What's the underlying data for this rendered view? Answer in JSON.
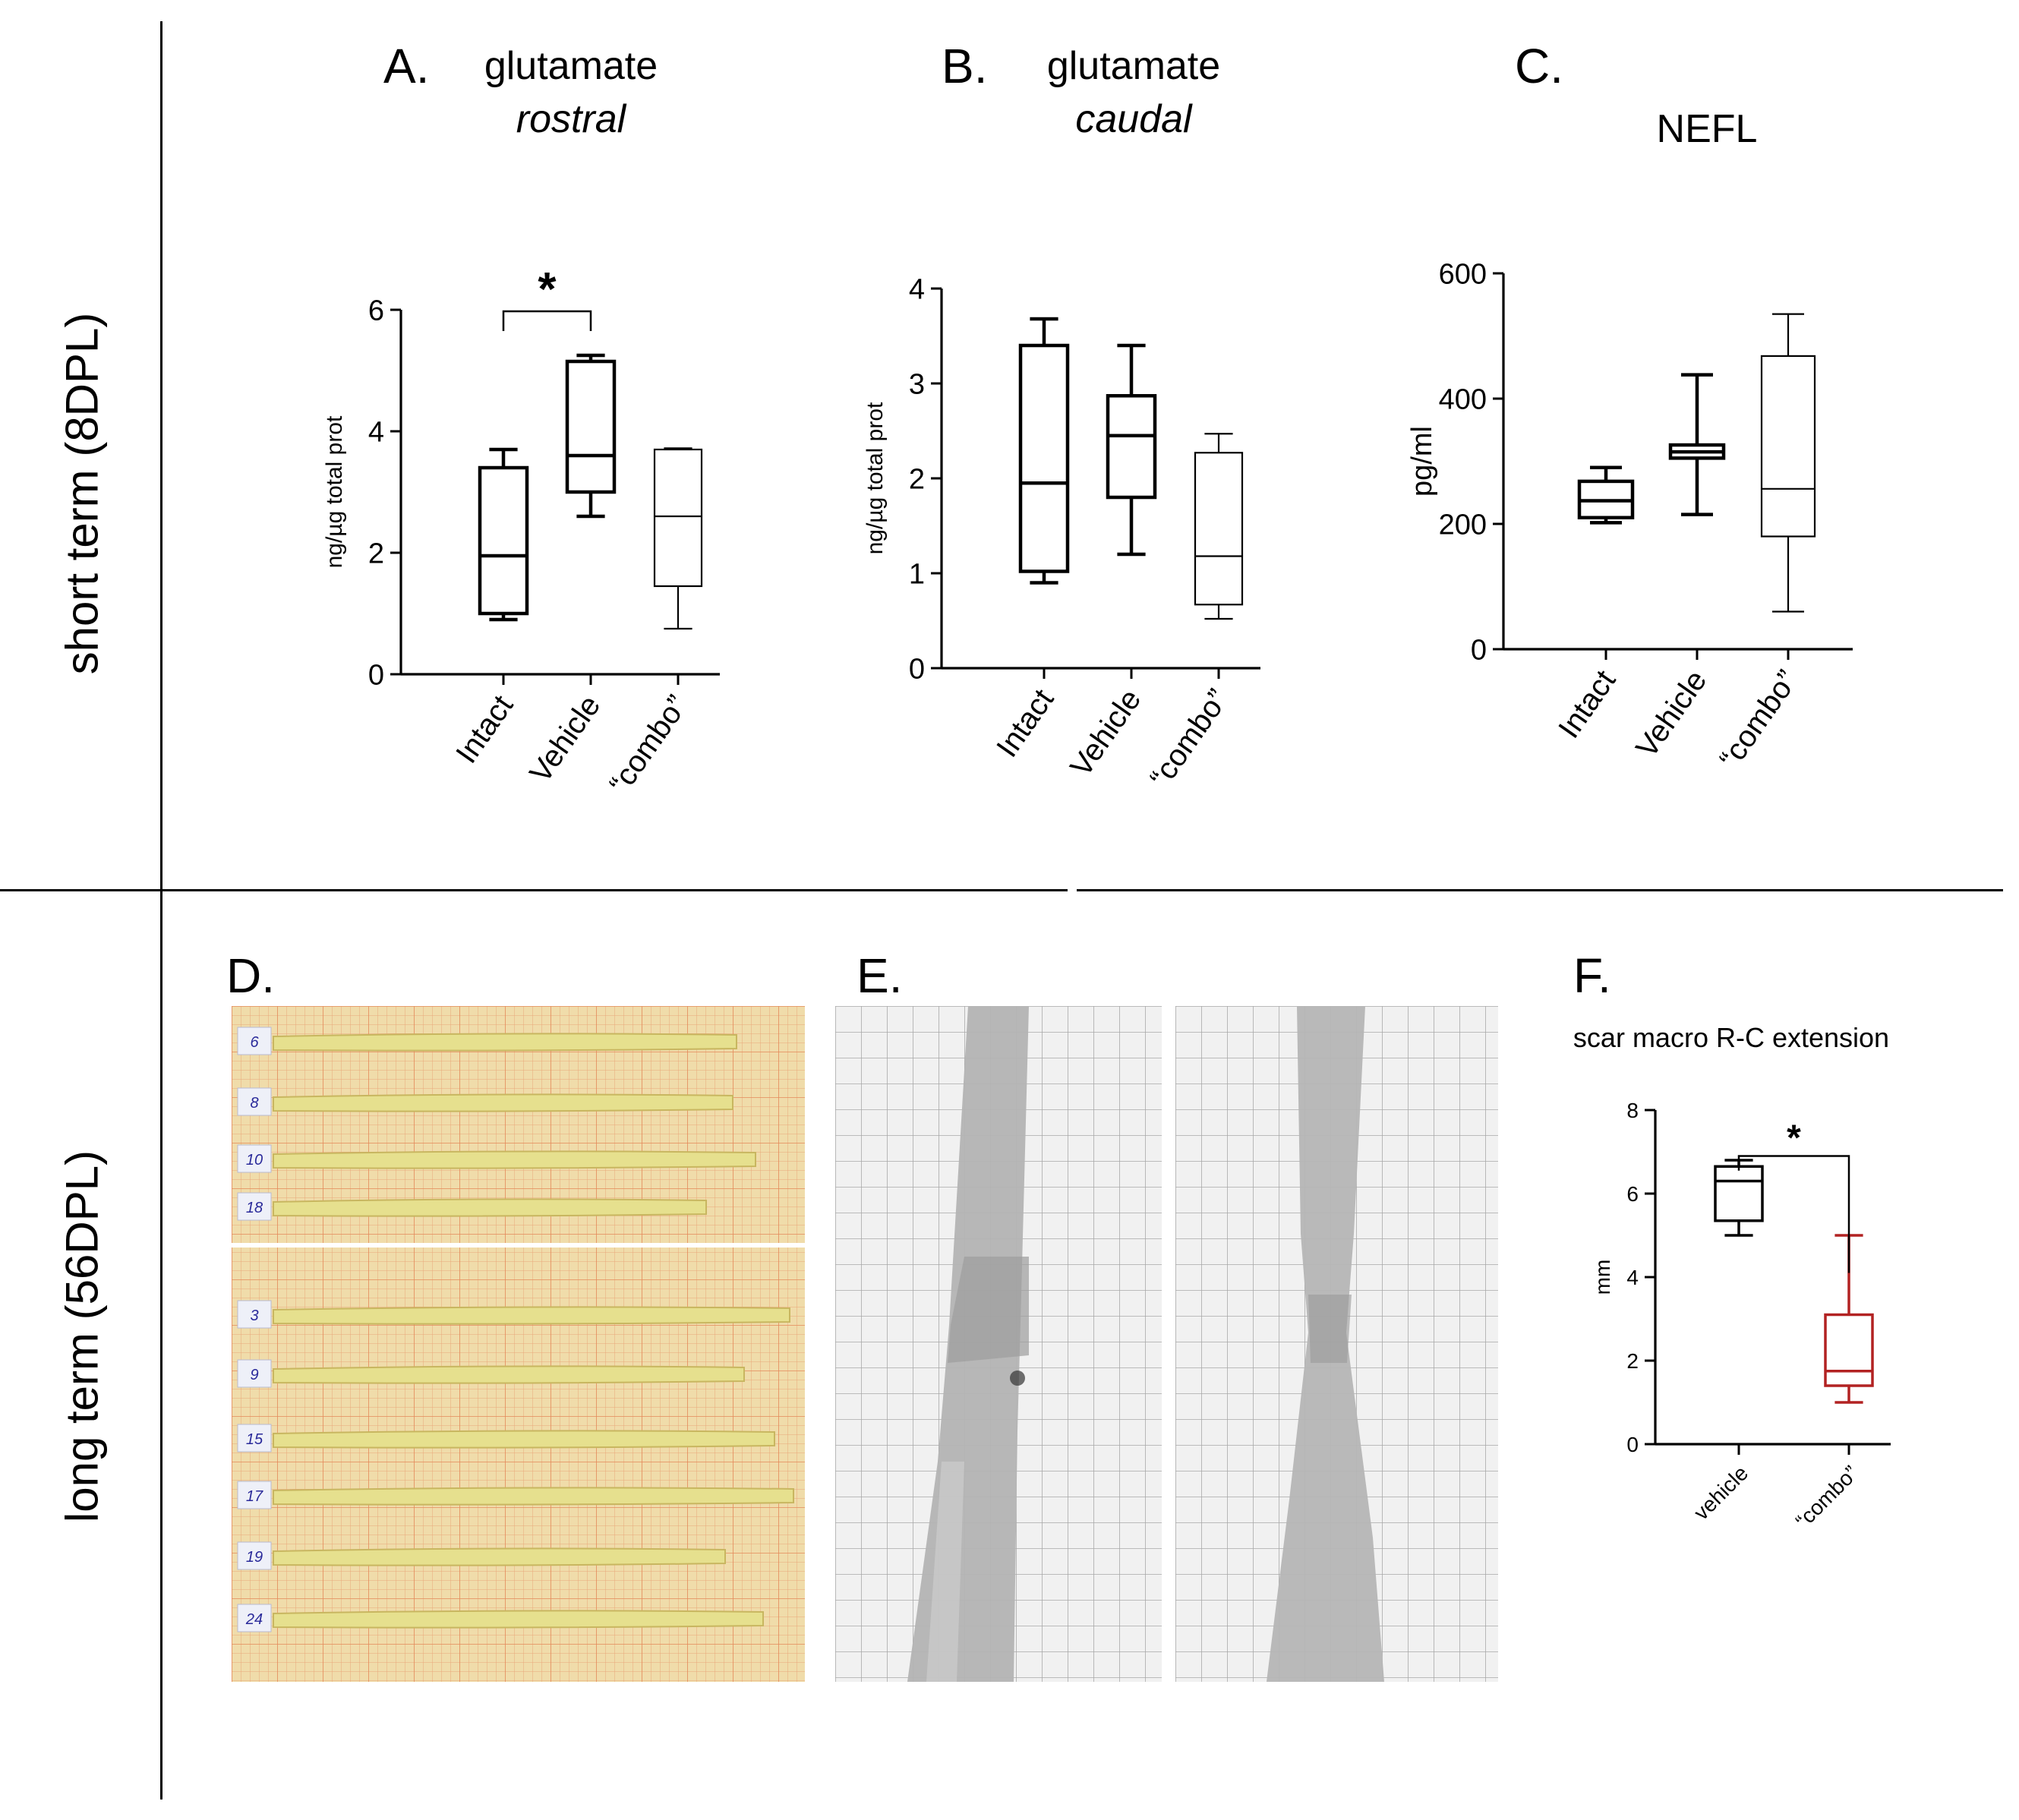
{
  "rows": {
    "short": "short term (8DPL)",
    "long": "long term (56DPL)"
  },
  "panels": {
    "A": {
      "letter": "A.",
      "title_line1": "glutamate",
      "title_line2": "rostral"
    },
    "B": {
      "letter": "B.",
      "title_line1": "glutamate",
      "title_line2": "caudal"
    },
    "C": {
      "letter": "C.",
      "title_line1": "NEFL"
    },
    "D": {
      "letter": "D."
    },
    "E": {
      "letter": "E."
    },
    "F": {
      "letter": "F.",
      "title_line1": "scar macro R-C extension"
    }
  },
  "photo_d": {
    "top_labels": [
      "6",
      "8",
      "10",
      "18"
    ],
    "bottom_labels": [
      "3",
      "9",
      "15",
      "17",
      "19",
      "24"
    ]
  },
  "colors": {
    "black": "#000000",
    "red": "#b22222",
    "grid_orange": "#e8a070",
    "paper": "#efd9a8"
  },
  "chart_data": [
    {
      "type": "box",
      "id": "A",
      "title": "glutamate rostral",
      "ylabel": "ng/µg total prot",
      "ylim": [
        0,
        6
      ],
      "yticks": [
        0,
        2,
        4,
        6
      ],
      "categories": [
        "Intact",
        "Vehicle",
        "“combo”"
      ],
      "boxes": [
        {
          "min": 0.9,
          "q1": 1.0,
          "median": 1.95,
          "q3": 3.4,
          "max": 3.7,
          "color": "#000000",
          "bold": true
        },
        {
          "min": 2.6,
          "q1": 3.0,
          "median": 3.6,
          "q3": 5.15,
          "max": 5.25,
          "color": "#000000",
          "bold": true
        },
        {
          "min": 0.75,
          "q1": 1.45,
          "median": 2.6,
          "q3": 3.7,
          "max": 3.72,
          "color": "#000000",
          "bold": false
        }
      ],
      "significance": [
        {
          "from": 0,
          "to": 1,
          "label": "*"
        }
      ]
    },
    {
      "type": "box",
      "id": "B",
      "title": "glutamate caudal",
      "ylabel": "ng/µg total prot",
      "ylim": [
        0,
        4
      ],
      "yticks": [
        0,
        1,
        2,
        3,
        4
      ],
      "categories": [
        "Intact",
        "Vehicle",
        "“combo”"
      ],
      "boxes": [
        {
          "min": 0.9,
          "q1": 1.02,
          "median": 1.95,
          "q3": 3.4,
          "max": 3.68,
          "color": "#000000",
          "bold": true
        },
        {
          "min": 1.2,
          "q1": 1.8,
          "median": 2.45,
          "q3": 2.87,
          "max": 3.4,
          "color": "#000000",
          "bold": true
        },
        {
          "min": 0.52,
          "q1": 0.67,
          "median": 1.18,
          "q3": 2.27,
          "max": 2.47,
          "color": "#000000",
          "bold": false
        }
      ],
      "significance": []
    },
    {
      "type": "box",
      "id": "C",
      "title": "NEFL",
      "ylabel": "pg/ml",
      "ylim": [
        0,
        600
      ],
      "yticks": [
        0,
        200,
        400,
        600
      ],
      "categories": [
        "Intact",
        "Vehicle",
        "“combo”"
      ],
      "boxes": [
        {
          "min": 202,
          "q1": 210,
          "median": 237,
          "q3": 268,
          "max": 290,
          "color": "#000000",
          "bold": true
        },
        {
          "min": 215,
          "q1": 305,
          "median": 315,
          "q3": 326,
          "max": 438,
          "color": "#000000",
          "bold": true
        },
        {
          "min": 60,
          "q1": 180,
          "median": 256,
          "q3": 468,
          "max": 535,
          "color": "#000000",
          "bold": false
        }
      ],
      "significance": []
    },
    {
      "type": "box",
      "id": "F",
      "title": "scar macro R-C extension",
      "ylabel": "mm",
      "ylim": [
        0,
        8
      ],
      "yticks": [
        0,
        2,
        4,
        6,
        8
      ],
      "categories": [
        "vehicle",
        "“combo”"
      ],
      "boxes": [
        {
          "min": 5.0,
          "q1": 5.35,
          "median": 6.3,
          "q3": 6.65,
          "max": 6.8,
          "color": "#000000",
          "bold": true
        },
        {
          "min": 1.0,
          "q1": 1.4,
          "median": 1.75,
          "q3": 3.1,
          "max": 5.0,
          "color": "#b22222",
          "bold": true
        }
      ],
      "significance": [
        {
          "from": 0,
          "to": 1,
          "label": "*"
        }
      ]
    }
  ]
}
